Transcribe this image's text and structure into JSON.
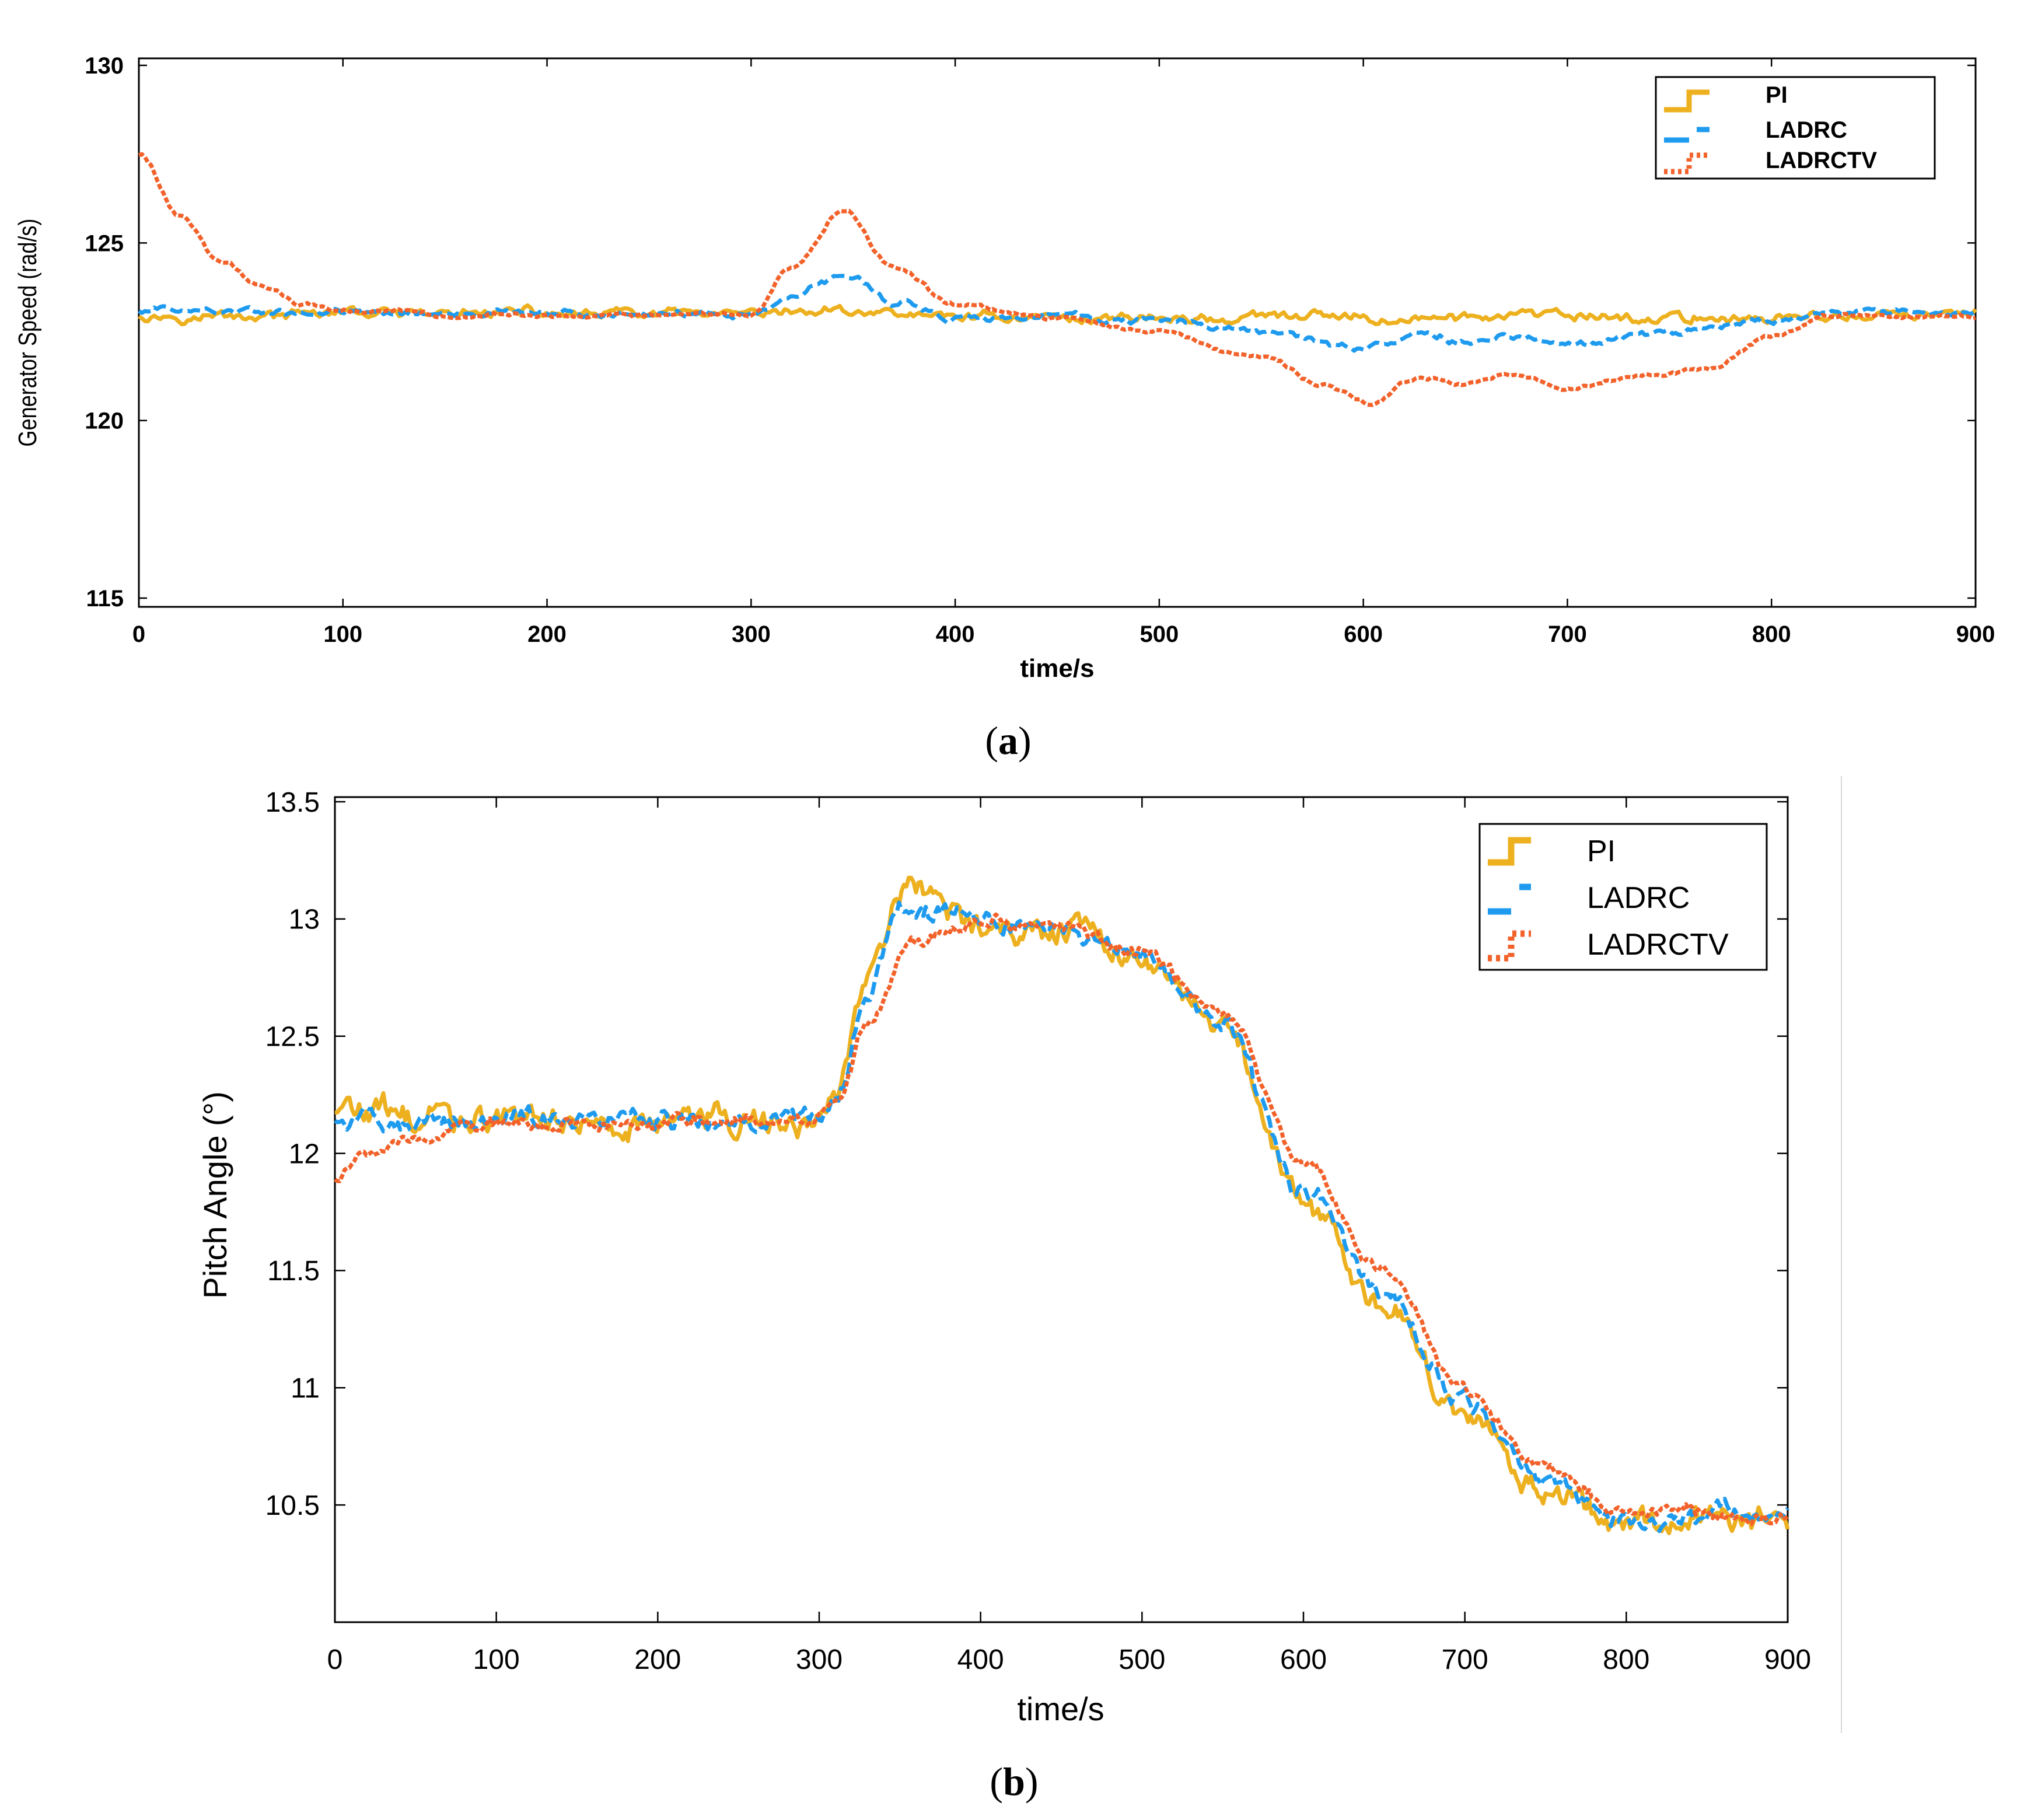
{
  "chart_data": [
    {
      "type": "line",
      "panel_label": "a",
      "xlabel": "time/s",
      "ylabel": "Generator Speed (rad/s)",
      "xlim": [
        0,
        900
      ],
      "ylim": [
        115,
        130
      ],
      "xticks": [
        0,
        100,
        200,
        300,
        400,
        500,
        600,
        700,
        800,
        900
      ],
      "yticks": [
        115,
        120,
        125,
        130
      ],
      "legend_position": "top-right",
      "noise_amp": 0.12,
      "series": [
        {
          "name": "PI",
          "color": "#EDB120",
          "style": "solid",
          "x": [
            0,
            100,
            200,
            300,
            350,
            400,
            500,
            600,
            700,
            800,
            900
          ],
          "values": [
            123.0,
            123.0,
            123.0,
            123.0,
            123.1,
            122.95,
            122.9,
            122.9,
            122.9,
            122.9,
            123.0
          ]
        },
        {
          "name": "LADRC",
          "color": "#1E9BEF",
          "style": "dashed",
          "x": [
            0,
            100,
            200,
            300,
            320,
            345,
            370,
            400,
            450,
            500,
            550,
            600,
            630,
            650,
            680,
            700,
            750,
            800,
            830,
            900
          ],
          "values": [
            123.1,
            123.0,
            123.0,
            123.0,
            123.5,
            124.1,
            123.4,
            122.9,
            122.9,
            122.8,
            122.5,
            122.1,
            122.4,
            122.2,
            122.4,
            122.2,
            122.5,
            122.8,
            123.0,
            123.0
          ]
        },
        {
          "name": "LADRCTV",
          "color": "#F2622A",
          "style": "dotted",
          "x": [
            0,
            20,
            40,
            60,
            80,
            100,
            150,
            200,
            250,
            300,
            320,
            345,
            370,
            400,
            450,
            500,
            550,
            580,
            605,
            625,
            650,
            670,
            700,
            740,
            770,
            800,
            830,
            900
          ],
          "values": [
            127.5,
            125.8,
            124.5,
            123.8,
            123.3,
            123.1,
            123.0,
            122.95,
            122.95,
            123.0,
            124.3,
            125.9,
            124.3,
            123.3,
            122.9,
            122.5,
            121.8,
            121.0,
            120.5,
            121.2,
            121.0,
            121.3,
            120.9,
            121.3,
            121.5,
            122.4,
            123.0,
            122.9
          ]
        }
      ]
    },
    {
      "type": "line",
      "panel_label": "b",
      "xlabel": "time/s",
      "ylabel": "Pitch Angle (°)",
      "xlim": [
        0,
        900
      ],
      "ylim": [
        10,
        13.5
      ],
      "xticks": [
        0,
        100,
        200,
        300,
        400,
        500,
        600,
        700,
        800,
        900
      ],
      "yticks": [
        10.5,
        11,
        11.5,
        12,
        12.5,
        13,
        13.5
      ],
      "legend_position": "top-right",
      "noise_amp": 0.05,
      "series": [
        {
          "name": "PI",
          "color": "#EDB120",
          "style": "solid",
          "x": [
            0,
            50,
            100,
            200,
            300,
            310,
            330,
            350,
            375,
            380,
            400,
            450,
            500,
            550,
            600,
            650,
            700,
            750,
            790,
            800,
            900
          ],
          "values": [
            12.18,
            12.16,
            12.15,
            12.15,
            12.14,
            12.25,
            12.75,
            13.1,
            13.08,
            13.0,
            13.0,
            12.95,
            12.82,
            12.5,
            11.8,
            11.38,
            10.85,
            10.55,
            10.45,
            10.45,
            10.45
          ]
        },
        {
          "name": "LADRC",
          "color": "#1E9BEF",
          "style": "dashed",
          "x": [
            0,
            50,
            100,
            200,
            300,
            310,
            330,
            350,
            375,
            400,
            450,
            500,
            550,
            600,
            650,
            700,
            750,
            795,
            900
          ],
          "values": [
            12.15,
            12.14,
            12.14,
            12.15,
            12.14,
            12.22,
            12.7,
            13.05,
            13.03,
            13.0,
            12.95,
            12.84,
            12.55,
            11.85,
            11.42,
            10.9,
            10.6,
            10.46,
            10.45
          ]
        },
        {
          "name": "LADRCTV",
          "color": "#F2622A",
          "style": "dotted",
          "x": [
            0,
            20,
            50,
            100,
            200,
            300,
            310,
            330,
            360,
            400,
            450,
            500,
            550,
            600,
            650,
            700,
            750,
            795,
            900
          ],
          "values": [
            11.9,
            12.0,
            12.08,
            12.12,
            12.13,
            12.14,
            12.2,
            12.55,
            12.92,
            12.99,
            12.96,
            12.86,
            12.6,
            11.95,
            11.5,
            10.98,
            10.65,
            10.47,
            10.45
          ]
        }
      ]
    }
  ]
}
